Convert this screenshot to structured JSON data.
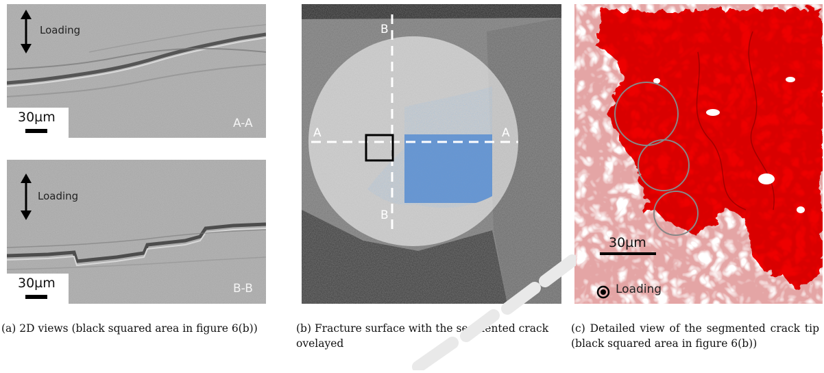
{
  "panel_a": {
    "top": {
      "loading_label": "Loading",
      "scale_label": "30µm",
      "section_label": "A-A"
    },
    "bottom": {
      "loading_label": "Loading",
      "scale_label": "30µm",
      "section_label": "B-B"
    }
  },
  "panel_b": {
    "label_b_top": "B",
    "label_b_bottom": "B",
    "label_a_left": "A",
    "label_a_right": "A",
    "overlay_color": "#4a86d2"
  },
  "panel_c": {
    "scale_label": "30µm",
    "loading_label": "Loading",
    "crack_color": "#ee0000"
  },
  "captions": {
    "a": "(a) 2D views (black squared area in figure 6(b))",
    "b": "(b) Fracture surface with the segmented crack ovelayed",
    "c": "(c) Detailed view of the segmented crack tip (black squared area in figure 6(b))"
  }
}
